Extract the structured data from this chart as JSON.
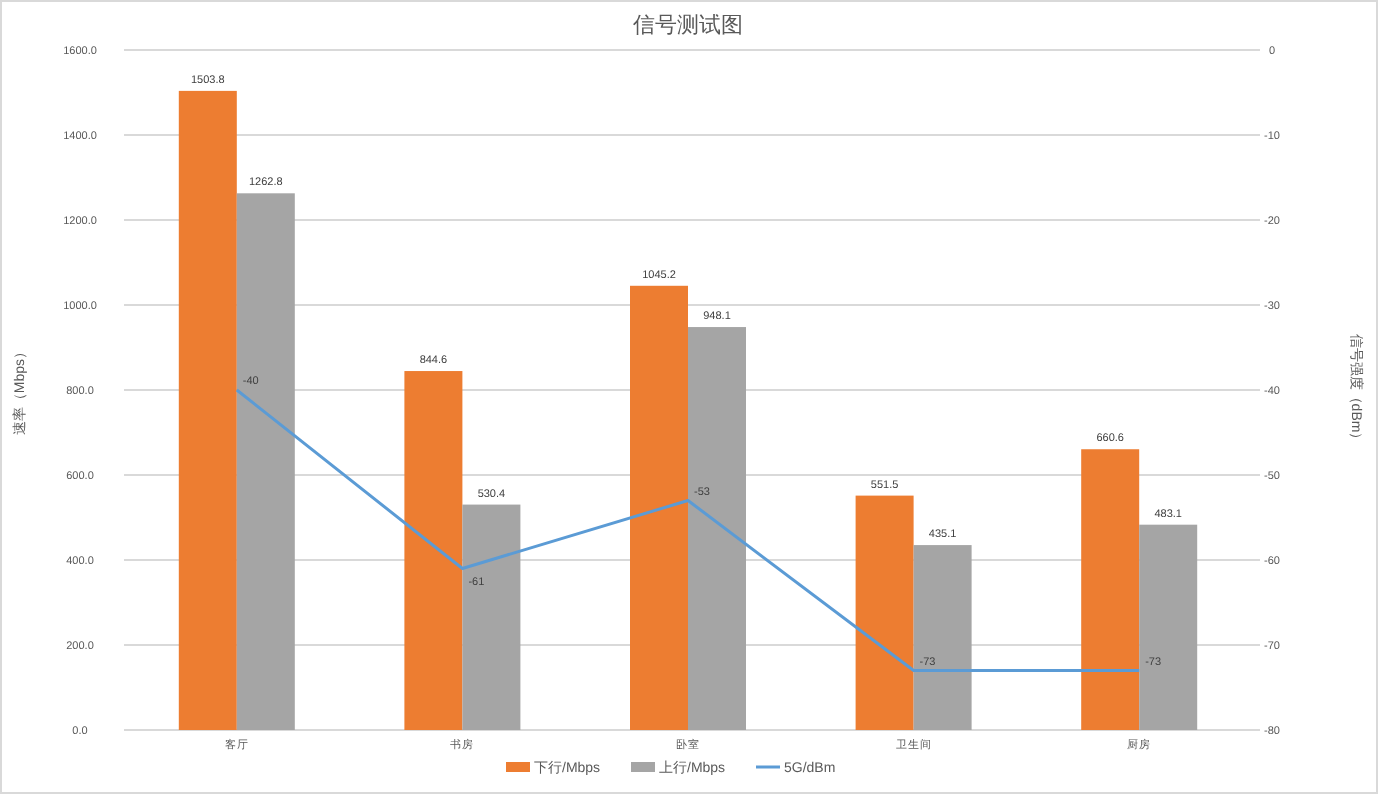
{
  "chart_data": {
    "type": "bar",
    "title": "信号测试图",
    "ylabel": "速率（Mbps）",
    "y2label": "信号强度（dBm）",
    "categories": [
      "客厅",
      "书房",
      "卧室",
      "卫生间",
      "厨房"
    ],
    "series": [
      {
        "name": "下行/Mbps",
        "color": "#ed7d31",
        "values": [
          1503.8,
          844.6,
          1045.2,
          551.5,
          660.6
        ]
      },
      {
        "name": "上行/Mbps",
        "color": "#a5a5a5",
        "values": [
          1262.8,
          530.4,
          948.1,
          435.1,
          483.1
        ]
      },
      {
        "name": "5G/dBm",
        "type": "line",
        "axis": "y2",
        "color": "#5b9bd5",
        "values": [
          -40,
          -61,
          -53,
          -73,
          -73
        ]
      }
    ],
    "ylim": [
      0,
      1600
    ],
    "yticks": [
      {
        "value": 0,
        "label": "0.0"
      },
      {
        "value": 200,
        "label": "200.0"
      },
      {
        "value": 400,
        "label": "400.0"
      },
      {
        "value": 600,
        "label": "600.0"
      },
      {
        "value": 800,
        "label": "800.0"
      },
      {
        "value": 1000,
        "label": "1000.0"
      },
      {
        "value": 1200,
        "label": "1200.0"
      },
      {
        "value": 1400,
        "label": "1400.0"
      },
      {
        "value": 1600,
        "label": "1600.0"
      }
    ],
    "y2lim": [
      -80,
      0
    ],
    "y2ticks": [
      0,
      -10,
      -20,
      -30,
      -40,
      -50,
      -60,
      -70,
      -80
    ],
    "grid": "y",
    "legend": "bottom",
    "data_labels": true
  }
}
